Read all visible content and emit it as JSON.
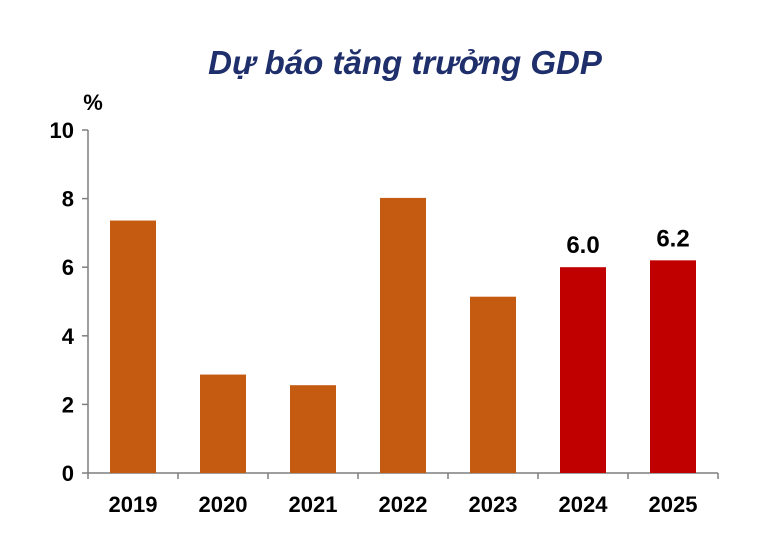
{
  "chart_data": {
    "type": "bar",
    "title": "Dự báo tăng trưởng GDP",
    "ylabel": "%",
    "xlabel": "",
    "categories": [
      "2019",
      "2020",
      "2021",
      "2022",
      "2023",
      "2024",
      "2025"
    ],
    "values": [
      7.36,
      2.87,
      2.56,
      8.02,
      5.14,
      6.0,
      6.2
    ],
    "highlight": [
      false,
      false,
      false,
      false,
      false,
      true,
      true
    ],
    "data_labels": [
      "",
      "",
      "",
      "",
      "",
      "6.0",
      "6.2"
    ],
    "yticks": [
      "0",
      "2",
      "4",
      "6",
      "8",
      "10"
    ],
    "ylim": [
      0,
      10
    ],
    "grid": false,
    "colors": {
      "actual": "#c55a11",
      "forecast": "#c00000",
      "axis": "#7f7f7f"
    }
  }
}
